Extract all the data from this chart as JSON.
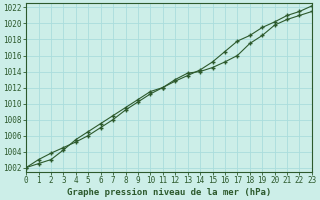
{
  "title": "Graphe pression niveau de la mer (hPa)",
  "background_color": "#cceee8",
  "grid_color": "#aadddd",
  "line_color": "#2d5a2d",
  "xlim": [
    0,
    23
  ],
  "ylim": [
    1001.5,
    1022.5
  ],
  "yticks": [
    1002,
    1004,
    1006,
    1008,
    1010,
    1012,
    1014,
    1016,
    1018,
    1020,
    1022
  ],
  "xticks": [
    0,
    1,
    2,
    3,
    4,
    5,
    6,
    7,
    8,
    9,
    10,
    11,
    12,
    13,
    14,
    15,
    16,
    17,
    18,
    19,
    20,
    21,
    22,
    23
  ],
  "series1_x": [
    0,
    1,
    2,
    3,
    4,
    5,
    6,
    7,
    8,
    9,
    10,
    11,
    12,
    13,
    14,
    15,
    16,
    17,
    18,
    19,
    20,
    21,
    22,
    23
  ],
  "series1_y": [
    1002.0,
    1003.0,
    1003.8,
    1004.5,
    1005.2,
    1006.0,
    1007.0,
    1008.0,
    1009.2,
    1010.2,
    1011.2,
    1012.0,
    1013.0,
    1013.8,
    1014.0,
    1014.5,
    1015.2,
    1016.0,
    1017.5,
    1018.5,
    1019.8,
    1020.5,
    1021.0,
    1021.5
  ],
  "series2_x": [
    0,
    1,
    2,
    3,
    4,
    5,
    6,
    7,
    8,
    9,
    10,
    11,
    12,
    13,
    14,
    15,
    16,
    17,
    18,
    19,
    20,
    21,
    22,
    23
  ],
  "series2_y": [
    1002.0,
    1002.5,
    1003.0,
    1004.2,
    1005.5,
    1006.5,
    1007.5,
    1008.5,
    1009.5,
    1010.5,
    1011.5,
    1012.0,
    1012.8,
    1013.5,
    1014.2,
    1015.2,
    1016.5,
    1017.8,
    1018.5,
    1019.5,
    1020.2,
    1021.0,
    1021.5,
    1022.2
  ],
  "title_fontsize": 6.5,
  "tick_fontsize": 5.5
}
